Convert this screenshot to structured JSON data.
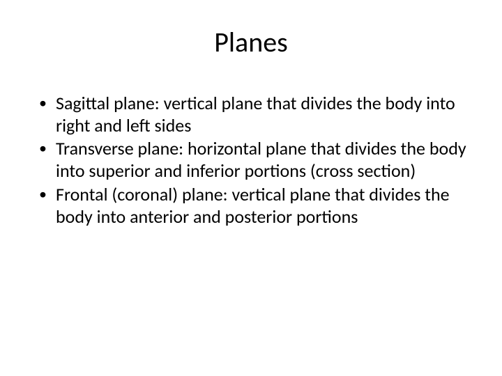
{
  "slide": {
    "title": "Planes",
    "bullets": [
      "Sagittal plane: vertical plane that divides the body into right and left sides",
      "Transverse plane: horizontal plane that divides the body into superior and inferior portions (cross section)",
      "Frontal (coronal) plane: vertical plane that divides the body into anterior and posterior portions"
    ],
    "colors": {
      "background": "#ffffff",
      "text": "#000000",
      "bullet": "#000000"
    },
    "typography": {
      "title_fontsize": 40,
      "body_fontsize": 26,
      "font_family": "Calibri"
    }
  }
}
